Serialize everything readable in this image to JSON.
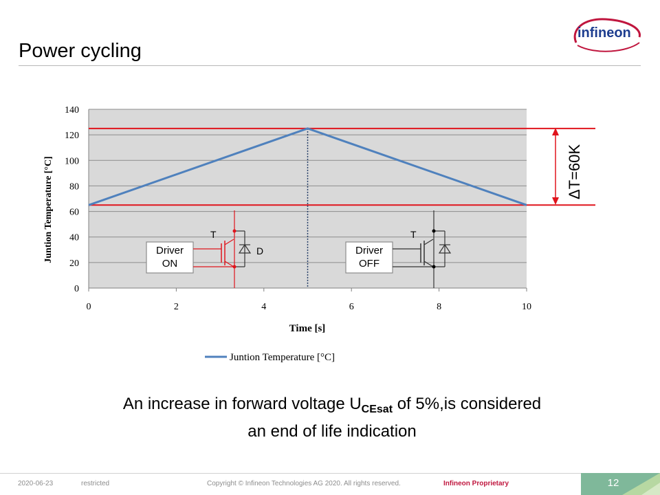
{
  "slide": {
    "title": "Power cycling",
    "logo_text": "infineon",
    "caption_line1_pre": "An increase in forward voltage U",
    "caption_sub": "CEsat",
    "caption_line1_post": " of 5%,is considered",
    "caption_line2": "an end of life indication"
  },
  "footer": {
    "date": "2020-06-23",
    "classification": "restricted",
    "copyright": "Copyright © Infineon Technologies AG 2020. All rights reserved.",
    "proprietary": "Infineon Proprietary",
    "page_number": "12"
  },
  "colors": {
    "series": "#4f81bd",
    "limit_lines": "#e0141c",
    "plot_bg": "#d9d9d9",
    "brand": "#c0163e",
    "corner_green": "#7fb89a"
  },
  "chart_data": {
    "type": "line",
    "title": "",
    "xlabel": "Time [s]",
    "ylabel": "Juntion Temperature [°C]",
    "xlim": [
      0,
      10
    ],
    "ylim": [
      0,
      140
    ],
    "xticks": [
      0,
      2,
      4,
      6,
      8,
      10
    ],
    "yticks": [
      0,
      20,
      40,
      60,
      80,
      100,
      120,
      140
    ],
    "grid": true,
    "legend_position": "bottom",
    "series": [
      {
        "name": "Juntion Temperature [°C]",
        "x": [
          0,
          5,
          10
        ],
        "y": [
          65,
          125,
          65
        ]
      }
    ],
    "reference_lines": {
      "upper": 125,
      "lower": 65,
      "switch_time": 5
    },
    "annotations": {
      "delta_label": "ΔT=60K",
      "on_driver": "Driver|ON",
      "off_driver": "Driver|OFF",
      "transistor_label": "T",
      "diode_label": "D"
    }
  }
}
